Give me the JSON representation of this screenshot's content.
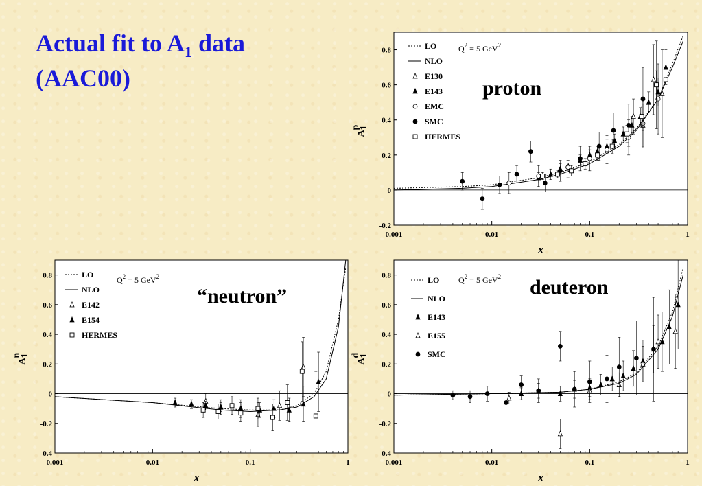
{
  "slide": {
    "title_line1_pre": "Actual fit to A",
    "title_sub": "1",
    "title_line1_post": " data",
    "title_line2": "(AAC00)"
  },
  "chart_data": [
    {
      "id": "proton",
      "type": "scatter",
      "panel_label": "proton",
      "xlabel": "x",
      "ylabel": "A",
      "ylabel_sub": "1",
      "ylabel_sup": "p",
      "xscale": "log",
      "xlim": [
        0.001,
        1
      ],
      "ylim": [
        -0.2,
        0.9
      ],
      "xticks": [
        "0.001",
        "0.01",
        "0.1",
        "1"
      ],
      "yticks": [
        "-0.2",
        "0",
        "0.2",
        "0.4",
        "0.6",
        "0.8"
      ],
      "ytick_values": [
        -0.2,
        0,
        0.2,
        0.4,
        0.6,
        0.8
      ],
      "q2_text": "Q² = 5 GeV²",
      "legend_lines": [
        "LO",
        "NLO"
      ],
      "legend_markers": [
        "E130",
        "E143",
        "EMC",
        "SMC",
        "HERMES"
      ],
      "series": [
        {
          "name": "LO",
          "style": "dotted",
          "x": [
            0.001,
            0.005,
            0.01,
            0.03,
            0.05,
            0.1,
            0.2,
            0.3,
            0.5,
            0.7,
            0.9
          ],
          "y": [
            0.01,
            0.02,
            0.03,
            0.07,
            0.1,
            0.16,
            0.26,
            0.35,
            0.52,
            0.72,
            0.88
          ]
        },
        {
          "name": "NLO",
          "style": "solid",
          "x": [
            0.001,
            0.005,
            0.01,
            0.03,
            0.05,
            0.1,
            0.2,
            0.3,
            0.5,
            0.7,
            0.9
          ],
          "y": [
            0.0,
            0.01,
            0.02,
            0.06,
            0.09,
            0.15,
            0.25,
            0.34,
            0.52,
            0.7,
            0.85
          ]
        },
        {
          "name": "E130",
          "marker": "triangle-open",
          "x": [
            0.28,
            0.35,
            0.45,
            0.55
          ],
          "y": [
            0.42,
            0.37,
            0.63,
            0.55
          ],
          "err": [
            0.1,
            0.12,
            0.2,
            0.25
          ]
        },
        {
          "name": "E143",
          "marker": "triangle-filled",
          "x": [
            0.03,
            0.04,
            0.05,
            0.06,
            0.08,
            0.1,
            0.12,
            0.15,
            0.18,
            0.22,
            0.27,
            0.33,
            0.4,
            0.5,
            0.6
          ],
          "y": [
            0.07,
            0.09,
            0.12,
            0.14,
            0.17,
            0.2,
            0.22,
            0.25,
            0.28,
            0.32,
            0.37,
            0.42,
            0.5,
            0.56,
            0.7
          ],
          "err": [
            0.03,
            0.03,
            0.03,
            0.03,
            0.03,
            0.03,
            0.03,
            0.04,
            0.04,
            0.04,
            0.05,
            0.05,
            0.06,
            0.08,
            0.1
          ]
        },
        {
          "name": "EMC",
          "marker": "circle-open",
          "x": [
            0.015,
            0.03,
            0.06,
            0.1,
            0.15,
            0.25,
            0.35,
            0.5
          ],
          "y": [
            0.04,
            0.08,
            0.13,
            0.18,
            0.23,
            0.3,
            0.38,
            0.52
          ],
          "err": [
            0.06,
            0.06,
            0.06,
            0.07,
            0.08,
            0.1,
            0.14,
            0.2
          ]
        },
        {
          "name": "SMC",
          "marker": "circle-filled",
          "x": [
            0.005,
            0.008,
            0.012,
            0.018,
            0.025,
            0.035,
            0.05,
            0.08,
            0.125,
            0.175,
            0.25,
            0.35,
            0.48
          ],
          "y": [
            0.05,
            -0.05,
            0.03,
            0.09,
            0.22,
            0.04,
            0.11,
            0.18,
            0.25,
            0.34,
            0.37,
            0.52,
            0.6
          ],
          "err": [
            0.05,
            0.06,
            0.05,
            0.05,
            0.06,
            0.05,
            0.06,
            0.07,
            0.08,
            0.1,
            0.12,
            0.18,
            0.25
          ]
        },
        {
          "name": "HERMES",
          "marker": "square-open",
          "x": [
            0.033,
            0.047,
            0.065,
            0.09,
            0.12,
            0.17,
            0.24,
            0.34,
            0.48,
            0.6
          ],
          "y": [
            0.08,
            0.09,
            0.11,
            0.15,
            0.2,
            0.25,
            0.32,
            0.42,
            0.6,
            0.63
          ],
          "err": [
            0.02,
            0.02,
            0.03,
            0.03,
            0.03,
            0.04,
            0.05,
            0.06,
            0.08,
            0.1
          ]
        }
      ]
    },
    {
      "id": "neutron",
      "type": "scatter",
      "panel_label": "“neutron”",
      "xlabel": "x",
      "ylabel": "A",
      "ylabel_sub": "1",
      "ylabel_sup": "n",
      "xscale": "log",
      "xlim": [
        0.001,
        1
      ],
      "ylim": [
        -0.4,
        0.9
      ],
      "xticks": [
        "0.001",
        "0.01",
        "0.1",
        "1"
      ],
      "yticks": [
        "-0.4",
        "-0.2",
        "0",
        "0.2",
        "0.4",
        "0.6",
        "0.8"
      ],
      "ytick_values": [
        -0.4,
        -0.2,
        0,
        0.2,
        0.4,
        0.6,
        0.8
      ],
      "q2_text": "Q² = 5 GeV²",
      "legend_lines": [
        "LO",
        "NLO"
      ],
      "legend_markers": [
        "E142",
        "E154",
        "HERMES"
      ],
      "series": [
        {
          "name": "LO",
          "style": "dotted",
          "x": [
            0.001,
            0.01,
            0.05,
            0.1,
            0.2,
            0.3,
            0.45,
            0.6,
            0.8,
            0.95
          ],
          "y": [
            -0.02,
            -0.06,
            -0.1,
            -0.11,
            -0.11,
            -0.08,
            0.0,
            0.15,
            0.5,
            0.85
          ]
        },
        {
          "name": "NLO",
          "style": "solid",
          "x": [
            0.001,
            0.01,
            0.05,
            0.1,
            0.2,
            0.3,
            0.45,
            0.6,
            0.8,
            0.95
          ],
          "y": [
            -0.02,
            -0.06,
            -0.11,
            -0.12,
            -0.11,
            -0.09,
            -0.02,
            0.1,
            0.45,
            0.9
          ]
        },
        {
          "name": "E142",
          "marker": "triangle-open",
          "x": [
            0.035,
            0.05,
            0.08,
            0.12,
            0.2,
            0.35
          ],
          "y": [
            -0.05,
            -0.09,
            -0.1,
            -0.14,
            -0.08,
            0.18
          ],
          "err": [
            0.05,
            0.05,
            0.06,
            0.08,
            0.1,
            0.2
          ]
        },
        {
          "name": "E154",
          "marker": "triangle-filled",
          "x": [
            0.017,
            0.025,
            0.035,
            0.05,
            0.08,
            0.125,
            0.175,
            0.25,
            0.35,
            0.5
          ],
          "y": [
            -0.06,
            -0.07,
            -0.08,
            -0.09,
            -0.1,
            -0.11,
            -0.1,
            -0.11,
            -0.07,
            0.08
          ],
          "err": [
            0.03,
            0.03,
            0.03,
            0.03,
            0.04,
            0.05,
            0.06,
            0.08,
            0.12,
            0.2
          ]
        },
        {
          "name": "HERMES",
          "marker": "square-open",
          "x": [
            0.033,
            0.047,
            0.065,
            0.08,
            0.12,
            0.17,
            0.24,
            0.34,
            0.47
          ],
          "y": [
            -0.11,
            -0.12,
            -0.08,
            -0.13,
            -0.1,
            -0.16,
            -0.06,
            0.15,
            -0.15
          ],
          "err": [
            0.05,
            0.05,
            0.06,
            0.06,
            0.07,
            0.09,
            0.12,
            0.2,
            0.3
          ]
        }
      ]
    },
    {
      "id": "deuteron",
      "type": "scatter",
      "panel_label": "deuteron",
      "xlabel": "x",
      "ylabel": "A",
      "ylabel_sub": "1",
      "ylabel_sup": "d",
      "xscale": "log",
      "xlim": [
        0.001,
        1
      ],
      "ylim": [
        -0.4,
        0.9
      ],
      "xticks": [
        "0.001",
        "0.01",
        "0.1",
        "1"
      ],
      "yticks": [
        "-0.4",
        "-0.2",
        "0",
        "0.2",
        "0.4",
        "0.6",
        "0.8"
      ],
      "ytick_values": [
        -0.4,
        -0.2,
        0,
        0.2,
        0.4,
        0.6,
        0.8
      ],
      "q2_text": "Q² = 5 GeV²",
      "legend_lines": [
        "LO",
        "NLO"
      ],
      "legend_markers": [
        "E143",
        "E155",
        "SMC"
      ],
      "series": [
        {
          "name": "LO",
          "style": "dotted",
          "x": [
            0.001,
            0.01,
            0.05,
            0.1,
            0.2,
            0.3,
            0.5,
            0.7,
            0.9
          ],
          "y": [
            -0.01,
            0.0,
            0.01,
            0.03,
            0.08,
            0.14,
            0.32,
            0.55,
            0.85
          ]
        },
        {
          "name": "NLO",
          "style": "solid",
          "x": [
            0.001,
            0.01,
            0.05,
            0.1,
            0.2,
            0.3,
            0.5,
            0.7,
            0.9
          ],
          "y": [
            -0.01,
            0.0,
            0.01,
            0.03,
            0.07,
            0.13,
            0.3,
            0.52,
            0.8
          ]
        },
        {
          "name": "E143",
          "marker": "triangle-filled",
          "x": [
            0.02,
            0.03,
            0.05,
            0.07,
            0.1,
            0.13,
            0.17,
            0.22,
            0.28,
            0.35,
            0.45,
            0.55,
            0.65,
            0.8
          ],
          "y": [
            0.0,
            0.02,
            0.0,
            0.03,
            0.04,
            0.06,
            0.1,
            0.12,
            0.17,
            0.22,
            0.3,
            0.35,
            0.45,
            0.6
          ],
          "err": [
            0.04,
            0.05,
            0.05,
            0.06,
            0.06,
            0.07,
            0.08,
            0.1,
            0.12,
            0.14,
            0.16,
            0.2,
            0.25,
            0.3
          ]
        },
        {
          "name": "E155",
          "marker": "triangle-open",
          "x": [
            0.015,
            0.05,
            0.1,
            0.2,
            0.35,
            0.5,
            0.75
          ],
          "y": [
            -0.03,
            -0.27,
            0.02,
            0.06,
            0.2,
            0.35,
            0.42
          ],
          "err": [
            0.04,
            0.1,
            0.06,
            0.08,
            0.12,
            0.18,
            0.25
          ]
        },
        {
          "name": "SMC",
          "marker": "circle-filled",
          "x": [
            0.004,
            0.006,
            0.009,
            0.014,
            0.02,
            0.03,
            0.05,
            0.07,
            0.1,
            0.15,
            0.2,
            0.3,
            0.45
          ],
          "y": [
            -0.01,
            -0.02,
            0.0,
            -0.06,
            0.06,
            0.02,
            0.32,
            0.03,
            0.08,
            0.1,
            0.18,
            0.24,
            0.3
          ],
          "err": [
            0.03,
            0.04,
            0.05,
            0.05,
            0.06,
            0.08,
            0.1,
            0.12,
            0.14,
            0.16,
            0.2,
            0.25,
            0.35
          ]
        }
      ]
    }
  ]
}
